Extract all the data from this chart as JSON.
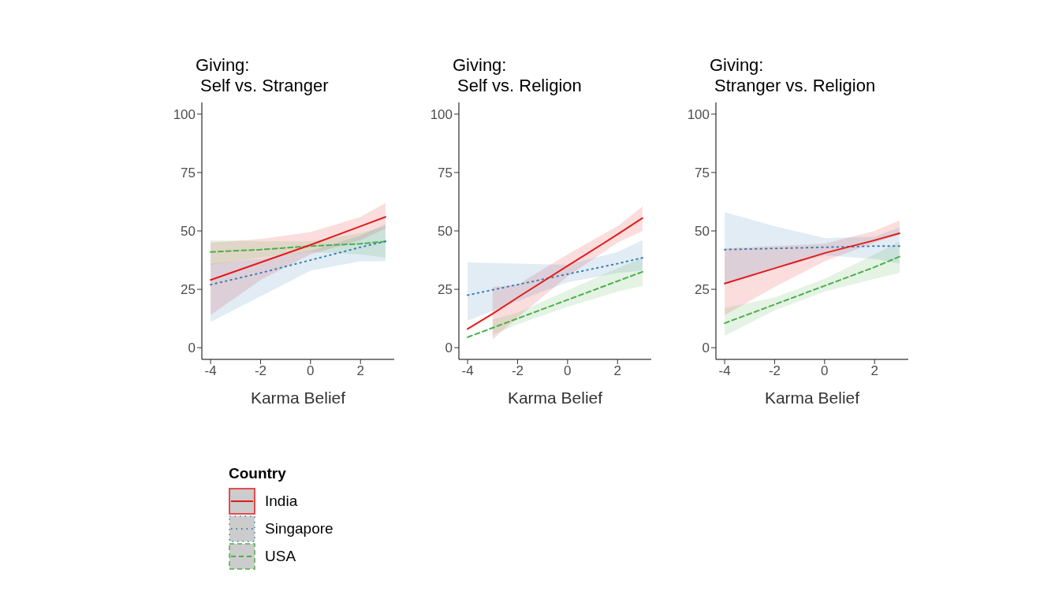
{
  "chart_data": [
    {
      "type": "line",
      "title": "Giving:\nSelf vs. Stranger",
      "xlabel": "Karma Belief",
      "xlim": [
        -4.35,
        3.35
      ],
      "xticks": [
        -4,
        -2,
        0,
        2
      ],
      "ylim": [
        -5,
        105
      ],
      "yticks": [
        0,
        25,
        50,
        75,
        100
      ],
      "legend": "bottom",
      "legend_title": "Country",
      "series": [
        {
          "name": "India",
          "color": "#e41a1c",
          "line_style": "solid",
          "x": [
            -4,
            -2,
            0,
            2,
            3
          ],
          "values": [
            29,
            36.5,
            44,
            52,
            56
          ],
          "lower": [
            14,
            29,
            40,
            46,
            51
          ],
          "upper": [
            45,
            46.5,
            49.5,
            56,
            62
          ]
        },
        {
          "name": "Singapore",
          "color": "#377eb8",
          "line_style": "dotted",
          "x": [
            -4,
            -2,
            0,
            2,
            3
          ],
          "values": [
            27,
            32,
            37.5,
            43,
            45.5
          ],
          "lower": [
            11,
            22,
            33,
            37,
            37
          ],
          "upper": [
            36,
            38,
            41.5,
            48,
            53
          ]
        },
        {
          "name": "USA",
          "color": "#4daf4a",
          "line_style": "dashed",
          "x": [
            -4,
            -2,
            0,
            2,
            3
          ],
          "values": [
            41,
            42,
            43.5,
            44.5,
            45.5
          ],
          "lower": [
            35.5,
            38.5,
            41,
            40,
            38.5
          ],
          "upper": [
            46,
            45.5,
            45.5,
            49,
            52
          ]
        }
      ]
    },
    {
      "type": "line",
      "title": "Giving:\nSelf vs. Religion",
      "xlabel": "Karma Belief",
      "xlim": [
        -4.35,
        3.35
      ],
      "xticks": [
        -4,
        -2,
        0,
        2
      ],
      "ylim": [
        -5,
        105
      ],
      "yticks": [
        0,
        25,
        50,
        75,
        100
      ],
      "series": [
        {
          "color": "#e41a1c",
          "line_style": "solid",
          "x": [
            -4,
            -3,
            -2,
            0,
            2,
            3
          ],
          "values": [
            8,
            14.5,
            21.5,
            35,
            48.5,
            55.5
          ],
          "lower": [
            null,
            3.5,
            13,
            30.5,
            45,
            50
          ],
          "upper": [
            null,
            26,
            27,
            40,
            52,
            60.5
          ]
        },
        {
          "color": "#377eb8",
          "line_style": "dotted",
          "x": [
            -4,
            -2,
            0,
            2,
            3
          ],
          "values": [
            22.5,
            27,
            31.5,
            36,
            38.5
          ],
          "lower": [
            11.5,
            20,
            28,
            32,
            33
          ],
          "upper": [
            36.5,
            36,
            35.5,
            41,
            46
          ]
        },
        {
          "color": "#4daf4a",
          "line_style": "dashed",
          "x": [
            -4,
            -3,
            -2,
            0,
            2,
            3
          ],
          "values": [
            4.5,
            8.5,
            12.5,
            20.5,
            28.5,
            32.5
          ],
          "lower": [
            null,
            5.5,
            10,
            17.5,
            24,
            26.5
          ],
          "upper": [
            null,
            12,
            15,
            24.5,
            34,
            38.5
          ]
        }
      ]
    },
    {
      "type": "line",
      "title": "Giving:\nStranger vs. Religion",
      "xlabel": "Karma Belief",
      "xlim": [
        -4.35,
        3.35
      ],
      "xticks": [
        -4,
        -2,
        0,
        2
      ],
      "ylim": [
        -5,
        105
      ],
      "yticks": [
        0,
        25,
        50,
        75,
        100
      ],
      "series": [
        {
          "color": "#e41a1c",
          "line_style": "solid",
          "x": [
            -4,
            -2,
            0,
            2,
            3
          ],
          "values": [
            27.5,
            34,
            40.5,
            46,
            49
          ],
          "lower": [
            14,
            26,
            37,
            45,
            48.5
          ],
          "upper": [
            42.5,
            43.5,
            44.5,
            50,
            54.5
          ]
        },
        {
          "color": "#377eb8",
          "line_style": "dotted",
          "x": [
            -4,
            -2,
            0,
            2,
            3
          ],
          "values": [
            42,
            42.5,
            43,
            43.5,
            43.5
          ],
          "lower": [
            27,
            34,
            39.5,
            38,
            36
          ],
          "upper": [
            58,
            52,
            47,
            47.5,
            51.5
          ]
        },
        {
          "color": "#4daf4a",
          "line_style": "dashed",
          "x": [
            -4,
            -2,
            0,
            2,
            3
          ],
          "values": [
            10.5,
            18.5,
            26.5,
            34.5,
            39
          ],
          "lower": [
            5,
            16,
            24,
            29.5,
            32
          ],
          "upper": [
            17,
            21.5,
            29.5,
            40,
            45.5
          ]
        }
      ]
    }
  ]
}
